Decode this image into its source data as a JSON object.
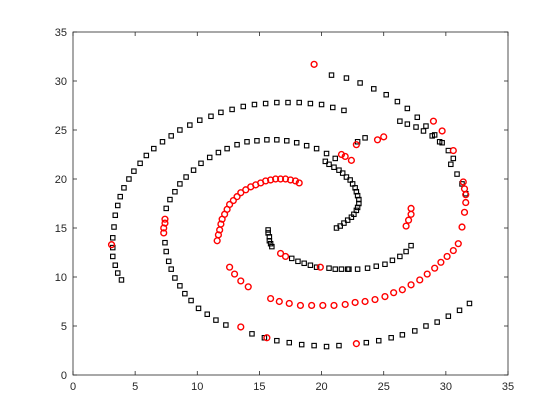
{
  "chart_data": {
    "type": "scatter",
    "title": "",
    "xlabel": "",
    "ylabel": "",
    "xlim": [
      0,
      35
    ],
    "ylim": [
      0,
      35
    ],
    "x_ticks": [
      0,
      5,
      10,
      15,
      20,
      25,
      30,
      35
    ],
    "y_ticks": [
      0,
      5,
      10,
      15,
      20,
      25,
      30,
      35
    ],
    "grid": false,
    "box": true,
    "series": [
      {
        "marker": "square",
        "color": "#000000",
        "points": [
          [
            3.9,
            9.7
          ],
          [
            3.6,
            10.4
          ],
          [
            3.4,
            11.2
          ],
          [
            3.2,
            12.1
          ],
          [
            3.2,
            13.0
          ],
          [
            3.2,
            14.0
          ],
          [
            3.3,
            15.1
          ],
          [
            3.4,
            16.3
          ],
          [
            3.6,
            17.3
          ],
          [
            3.8,
            18.2
          ],
          [
            4.1,
            19.1
          ],
          [
            4.5,
            20.0
          ],
          [
            4.9,
            20.8
          ],
          [
            5.4,
            21.6
          ],
          [
            5.9,
            22.4
          ],
          [
            6.5,
            23.1
          ],
          [
            7.2,
            23.8
          ],
          [
            7.9,
            24.4
          ],
          [
            8.6,
            25.0
          ],
          [
            9.4,
            25.5
          ],
          [
            10.2,
            26.0
          ],
          [
            11.1,
            26.4
          ],
          [
            11.9,
            26.8
          ],
          [
            12.8,
            27.1
          ],
          [
            13.7,
            27.4
          ],
          [
            14.6,
            27.6
          ],
          [
            15.5,
            27.7
          ],
          [
            16.4,
            27.8
          ],
          [
            17.3,
            27.8
          ],
          [
            18.2,
            27.8
          ],
          [
            19.1,
            27.7
          ],
          [
            20.0,
            27.6
          ],
          [
            20.9,
            27.3
          ],
          [
            21.8,
            27.0
          ],
          [
            30.6,
            22.1
          ],
          [
            30.2,
            22.9
          ],
          [
            29.7,
            23.7
          ],
          [
            29.1,
            24.5
          ],
          [
            28.4,
            25.4
          ],
          [
            27.7,
            26.3
          ],
          [
            26.9,
            27.2
          ],
          [
            26.1,
            27.9
          ],
          [
            25.2,
            28.6
          ],
          [
            24.2,
            29.2
          ],
          [
            23.1,
            29.8
          ],
          [
            22.0,
            30.3
          ],
          [
            20.8,
            30.6
          ],
          [
            7.4,
            13.5
          ],
          [
            7.5,
            12.6
          ],
          [
            7.7,
            11.6
          ],
          [
            7.9,
            10.8
          ],
          [
            8.2,
            9.9
          ],
          [
            8.6,
            9.1
          ],
          [
            9.0,
            8.3
          ],
          [
            9.5,
            7.6
          ],
          [
            10.1,
            6.8
          ],
          [
            10.8,
            6.2
          ],
          [
            11.5,
            5.6
          ],
          [
            12.3,
            5.1
          ],
          [
            14.4,
            4.2
          ],
          [
            15.4,
            3.8
          ],
          [
            16.4,
            3.5
          ],
          [
            17.4,
            3.3
          ],
          [
            18.4,
            3.1
          ],
          [
            19.4,
            3.0
          ],
          [
            20.4,
            2.9
          ],
          [
            21.4,
            3.0
          ],
          [
            23.6,
            3.3
          ],
          [
            24.6,
            3.5
          ],
          [
            25.6,
            3.8
          ],
          [
            26.5,
            4.1
          ],
          [
            27.5,
            4.5
          ],
          [
            28.4,
            5.0
          ],
          [
            29.3,
            5.4
          ],
          [
            30.2,
            6.0
          ],
          [
            31.1,
            6.6
          ],
          [
            31.9,
            7.3
          ],
          [
            31.6,
            18.5
          ],
          [
            31.3,
            19.5
          ],
          [
            30.9,
            20.5
          ],
          [
            30.4,
            21.5
          ],
          [
            7.5,
            17.0
          ],
          [
            7.8,
            17.9
          ],
          [
            8.2,
            18.7
          ],
          [
            8.6,
            19.5
          ],
          [
            9.1,
            20.2
          ],
          [
            9.7,
            20.9
          ],
          [
            10.3,
            21.6
          ],
          [
            11.0,
            22.2
          ],
          [
            11.7,
            22.7
          ],
          [
            12.4,
            23.1
          ],
          [
            13.2,
            23.5
          ],
          [
            14.0,
            23.8
          ],
          [
            14.8,
            23.9
          ],
          [
            15.6,
            24.0
          ],
          [
            16.4,
            24.0
          ],
          [
            17.2,
            23.9
          ],
          [
            18.0,
            23.7
          ],
          [
            18.8,
            23.4
          ],
          [
            19.6,
            23.1
          ],
          [
            20.4,
            22.6
          ],
          [
            21.1,
            22.1
          ],
          [
            27.2,
            13.2
          ],
          [
            26.8,
            12.6
          ],
          [
            26.3,
            12.1
          ],
          [
            25.7,
            11.7
          ],
          [
            25.1,
            11.3
          ],
          [
            24.4,
            11.1
          ],
          [
            23.7,
            10.9
          ],
          [
            22.9,
            10.8
          ],
          [
            22.2,
            10.8
          ],
          [
            20.3,
            21.8
          ],
          [
            20.6,
            21.5
          ],
          [
            21.0,
            21.2
          ],
          [
            21.4,
            20.9
          ],
          [
            21.7,
            20.6
          ],
          [
            22.0,
            20.2
          ],
          [
            22.3,
            19.9
          ],
          [
            22.5,
            19.5
          ],
          [
            22.7,
            19.1
          ],
          [
            22.8,
            18.7
          ],
          [
            22.9,
            18.3
          ],
          [
            23.0,
            17.9
          ],
          [
            23.0,
            17.5
          ],
          [
            22.9,
            17.1
          ],
          [
            22.8,
            16.8
          ],
          [
            22.6,
            16.4
          ],
          [
            22.4,
            16.1
          ],
          [
            22.1,
            15.8
          ],
          [
            21.8,
            15.5
          ],
          [
            21.5,
            15.2
          ],
          [
            21.2,
            15.0
          ],
          [
            15.7,
            14.8
          ],
          [
            15.7,
            14.5
          ],
          [
            15.8,
            14.1
          ],
          [
            15.8,
            13.7
          ],
          [
            15.9,
            13.4
          ],
          [
            16.0,
            13.1
          ],
          [
            17.6,
            11.9
          ],
          [
            18.1,
            11.6
          ],
          [
            18.6,
            11.4
          ],
          [
            19.1,
            11.2
          ],
          [
            19.6,
            11.0
          ],
          [
            20.6,
            10.9
          ],
          [
            21.1,
            10.8
          ],
          [
            21.6,
            10.8
          ],
          [
            22.1,
            10.8
          ],
          [
            29.5,
            23.8
          ],
          [
            28.9,
            24.4
          ],
          [
            28.2,
            24.9
          ],
          [
            27.6,
            25.3
          ],
          [
            26.9,
            25.6
          ],
          [
            26.3,
            25.9
          ],
          [
            22.9,
            23.8
          ],
          [
            23.5,
            24.2
          ]
        ]
      },
      {
        "marker": "circle",
        "color": "#ff0000",
        "points": [
          [
            3.1,
            13.3
          ],
          [
            7.3,
            14.5
          ],
          [
            7.3,
            15.0
          ],
          [
            7.4,
            15.5
          ],
          [
            7.4,
            15.9
          ],
          [
            11.6,
            13.7
          ],
          [
            11.7,
            14.3
          ],
          [
            11.8,
            14.8
          ],
          [
            11.9,
            15.4
          ],
          [
            12.0,
            15.9
          ],
          [
            12.2,
            16.4
          ],
          [
            12.4,
            16.9
          ],
          [
            12.6,
            17.4
          ],
          [
            12.9,
            17.8
          ],
          [
            13.2,
            18.2
          ],
          [
            13.5,
            18.6
          ],
          [
            13.9,
            18.9
          ],
          [
            14.3,
            19.2
          ],
          [
            14.7,
            19.4
          ],
          [
            15.1,
            19.6
          ],
          [
            15.5,
            19.8
          ],
          [
            15.9,
            19.9
          ],
          [
            16.3,
            20.0
          ],
          [
            16.7,
            20.0
          ],
          [
            17.1,
            20.0
          ],
          [
            17.5,
            19.9
          ],
          [
            17.9,
            19.8
          ],
          [
            18.2,
            19.6
          ],
          [
            12.6,
            11.0
          ],
          [
            13.0,
            10.3
          ],
          [
            13.5,
            9.6
          ],
          [
            14.1,
            9.0
          ],
          [
            15.9,
            7.8
          ],
          [
            16.6,
            7.5
          ],
          [
            17.4,
            7.3
          ],
          [
            18.3,
            7.1
          ],
          [
            19.2,
            7.1
          ],
          [
            20.1,
            7.1
          ],
          [
            21.0,
            7.1
          ],
          [
            21.9,
            7.2
          ],
          [
            22.7,
            7.4
          ],
          [
            23.5,
            7.5
          ],
          [
            24.3,
            7.7
          ],
          [
            25.1,
            8.0
          ],
          [
            25.8,
            8.4
          ],
          [
            26.5,
            8.7
          ],
          [
            27.2,
            9.2
          ],
          [
            27.9,
            9.7
          ],
          [
            28.5,
            10.3
          ],
          [
            29.1,
            10.9
          ],
          [
            29.6,
            11.5
          ],
          [
            30.1,
            12.1
          ],
          [
            30.6,
            12.7
          ],
          [
            31.0,
            13.4
          ],
          [
            31.3,
            15.1
          ],
          [
            31.5,
            16.6
          ],
          [
            31.6,
            17.6
          ],
          [
            31.6,
            18.4
          ],
          [
            31.5,
            19.0
          ],
          [
            31.4,
            19.7
          ],
          [
            30.6,
            22.9
          ],
          [
            29.7,
            24.9
          ],
          [
            29.0,
            25.9
          ],
          [
            25.0,
            24.3
          ],
          [
            24.5,
            24.0
          ],
          [
            22.8,
            23.5
          ],
          [
            19.4,
            31.7
          ],
          [
            22.8,
            3.2
          ],
          [
            15.6,
            3.8
          ],
          [
            13.5,
            4.9
          ],
          [
            19.9,
            11.0
          ],
          [
            16.7,
            12.4
          ],
          [
            17.1,
            12.1
          ],
          [
            26.8,
            15.2
          ],
          [
            27.0,
            15.8
          ],
          [
            27.2,
            16.4
          ],
          [
            27.2,
            17.0
          ],
          [
            21.9,
            22.3
          ],
          [
            21.6,
            22.5
          ],
          [
            22.4,
            21.9
          ]
        ]
      }
    ]
  }
}
